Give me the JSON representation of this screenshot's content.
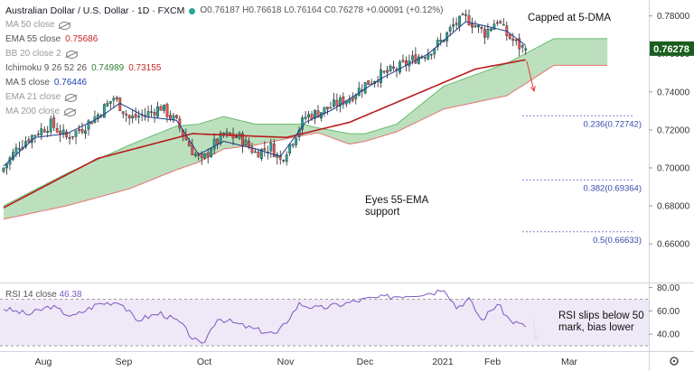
{
  "header": {
    "title": "Australian Dollar / U.S. Dollar · 1D · FXCM",
    "ohlc": "O0.76187 H0.76618 L0.76164 C0.76278 +0.00091 (+0.12%)"
  },
  "indicators": [
    {
      "label": "MA 50 close",
      "value": "",
      "color": "#9a9a9a",
      "hidden": true
    },
    {
      "label": "EMA 55 close",
      "value": "0.75686",
      "color": "#c62828",
      "hidden": false
    },
    {
      "label": "BB 20 close 2",
      "value": "",
      "color": "#9a9a9a",
      "hidden": true
    },
    {
      "label": "Ichimoku 9 26 52 26",
      "value": "0.74989",
      "value2": "0.73155",
      "color": "#2e7d32",
      "color2": "#c62828",
      "hidden": false
    },
    {
      "label": "MA 5 close",
      "value": "0.76446",
      "color": "#1e40af",
      "hidden": false
    },
    {
      "label": "EMA 21 close",
      "value": "",
      "color": "#9a9a9a",
      "hidden": true
    },
    {
      "label": "MA 200 close",
      "value": "",
      "color": "#9a9a9a",
      "hidden": true
    }
  ],
  "rsi_label": "RSI 14 close",
  "rsi_value": "46.38",
  "annotations": {
    "capped": "Capped at 5-DMA",
    "eyes": "Eyes 55-EMA\nsupport",
    "rsi": "RSI slips below 50\nmark, bias lower"
  },
  "colors": {
    "up": "#26a69a",
    "down": "#ef5350",
    "ema55": "#b71c1c",
    "ma5": "#1e3a8a",
    "cloud_bull": "#a5d6a7",
    "cloud_bear": "#ef9a9a",
    "rsi": "#7e57c2",
    "arrow": "#e53935"
  },
  "chart_data": {
    "type": "candlestick",
    "title": "Australian Dollar / U.S. Dollar · 1D · FXCM",
    "x_ticks": [
      "Aug",
      "Sep",
      "Oct",
      "Nov",
      "Dec",
      "2021",
      "Feb",
      "Mar"
    ],
    "ylim": [
      0.642,
      0.786
    ],
    "y_ticks": [
      0.66,
      0.68,
      0.7,
      0.72,
      0.74,
      0.76,
      0.78
    ],
    "y_tick_labels": [
      "0.66000",
      "0.68000",
      "0.70000",
      "0.72000",
      "0.74000",
      "0.76000",
      "0.78000"
    ],
    "last_price": "0.76278",
    "fib_levels": [
      {
        "label": "0.236(0.72742)",
        "value": 0.72742
      },
      {
        "label": "0.382(0.69364)",
        "value": 0.69364
      },
      {
        "label": "0.5(0.66633)",
        "value": 0.66633
      }
    ],
    "close_anchors": [
      [
        0,
        0.7
      ],
      [
        5,
        0.712
      ],
      [
        10,
        0.718
      ],
      [
        15,
        0.723
      ],
      [
        20,
        0.716
      ],
      [
        25,
        0.721
      ],
      [
        30,
        0.728
      ],
      [
        35,
        0.737
      ],
      [
        40,
        0.726
      ],
      [
        45,
        0.728
      ],
      [
        50,
        0.732
      ],
      [
        55,
        0.724
      ],
      [
        60,
        0.709
      ],
      [
        63,
        0.703
      ],
      [
        66,
        0.711
      ],
      [
        70,
        0.717
      ],
      [
        75,
        0.716
      ],
      [
        80,
        0.708
      ],
      [
        85,
        0.711
      ],
      [
        88,
        0.704
      ],
      [
        92,
        0.715
      ],
      [
        96,
        0.727
      ],
      [
        100,
        0.729
      ],
      [
        105,
        0.733
      ],
      [
        110,
        0.737
      ],
      [
        115,
        0.744
      ],
      [
        120,
        0.749
      ],
      [
        125,
        0.752
      ],
      [
        130,
        0.757
      ],
      [
        135,
        0.761
      ],
      [
        140,
        0.768
      ],
      [
        143,
        0.775
      ],
      [
        147,
        0.779
      ],
      [
        150,
        0.775
      ],
      [
        153,
        0.771
      ],
      [
        157,
        0.778
      ],
      [
        160,
        0.77
      ],
      [
        164,
        0.764
      ],
      [
        166,
        0.7628
      ]
    ],
    "ema55_anchors": [
      [
        0,
        0.679
      ],
      [
        30,
        0.705
      ],
      [
        60,
        0.718
      ],
      [
        90,
        0.716
      ],
      [
        110,
        0.724
      ],
      [
        130,
        0.738
      ],
      [
        150,
        0.752
      ],
      [
        166,
        0.7569
      ]
    ],
    "ma5_anchors": [
      [
        0,
        0.701
      ],
      [
        10,
        0.716
      ],
      [
        20,
        0.718
      ],
      [
        30,
        0.726
      ],
      [
        37,
        0.734
      ],
      [
        45,
        0.727
      ],
      [
        55,
        0.725
      ],
      [
        62,
        0.707
      ],
      [
        70,
        0.714
      ],
      [
        80,
        0.71
      ],
      [
        88,
        0.706
      ],
      [
        96,
        0.724
      ],
      [
        105,
        0.731
      ],
      [
        120,
        0.747
      ],
      [
        135,
        0.76
      ],
      [
        147,
        0.777
      ],
      [
        155,
        0.774
      ],
      [
        160,
        0.772
      ],
      [
        166,
        0.7645
      ]
    ],
    "cloud_a_anchors": [
      [
        0,
        0.68
      ],
      [
        20,
        0.697
      ],
      [
        40,
        0.712
      ],
      [
        55,
        0.722
      ],
      [
        62,
        0.723
      ],
      [
        70,
        0.727
      ],
      [
        80,
        0.723
      ],
      [
        95,
        0.723
      ],
      [
        100,
        0.721
      ],
      [
        110,
        0.718
      ],
      [
        115,
        0.718
      ],
      [
        125,
        0.723
      ],
      [
        140,
        0.743
      ],
      [
        160,
        0.755
      ],
      [
        175,
        0.768
      ],
      [
        192,
        0.768
      ]
    ],
    "cloud_b_anchors": [
      [
        0,
        0.673
      ],
      [
        20,
        0.68
      ],
      [
        40,
        0.689
      ],
      [
        55,
        0.699
      ],
      [
        62,
        0.703
      ],
      [
        70,
        0.71
      ],
      [
        80,
        0.712
      ],
      [
        95,
        0.717
      ],
      [
        100,
        0.7185
      ],
      [
        110,
        0.7125
      ],
      [
        115,
        0.714
      ],
      [
        125,
        0.719
      ],
      [
        140,
        0.731
      ],
      [
        160,
        0.738
      ],
      [
        175,
        0.754
      ],
      [
        192,
        0.754
      ]
    ],
    "rsi": {
      "ylim": [
        27,
        82
      ],
      "y_ticks": [
        40,
        60,
        80
      ],
      "y_tick_labels": [
        "40.00",
        "60.00",
        "80.00"
      ],
      "band": [
        30,
        70
      ],
      "anchors": [
        [
          0,
          62
        ],
        [
          8,
          57
        ],
        [
          15,
          64
        ],
        [
          22,
          55
        ],
        [
          30,
          66
        ],
        [
          37,
          68
        ],
        [
          42,
          52
        ],
        [
          50,
          58
        ],
        [
          56,
          50
        ],
        [
          60,
          37
        ],
        [
          63,
          30
        ],
        [
          68,
          54
        ],
        [
          74,
          49
        ],
        [
          80,
          44
        ],
        [
          87,
          40
        ],
        [
          94,
          66
        ],
        [
          100,
          62
        ],
        [
          108,
          66
        ],
        [
          115,
          70
        ],
        [
          122,
          72
        ],
        [
          130,
          74
        ],
        [
          137,
          76
        ],
        [
          140,
          80
        ],
        [
          144,
          63
        ],
        [
          148,
          70
        ],
        [
          152,
          52
        ],
        [
          157,
          66
        ],
        [
          161,
          52
        ],
        [
          166,
          46.38
        ]
      ]
    }
  }
}
